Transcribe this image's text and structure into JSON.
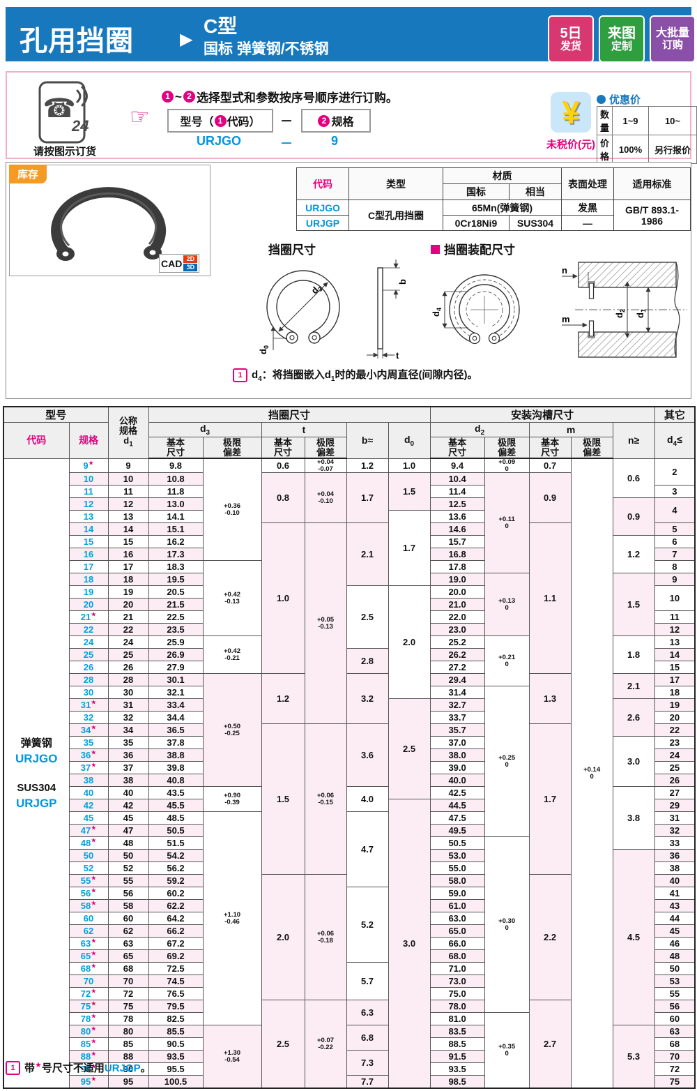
{
  "header": {
    "title": "孔用挡圈",
    "arrow": "▶",
    "type": "C型",
    "subtitle": "国标  弹簧钢/不锈钢",
    "badges": [
      {
        "line1": "5日",
        "line2": "发货",
        "color": "#d6386f"
      },
      {
        "line1": "来图",
        "line2": "定制",
        "color": "#2e9e3e"
      },
      {
        "line1": "大批量",
        "line2": "订购",
        "color": "#8a4fa8"
      }
    ]
  },
  "order": {
    "phone_number": "24",
    "phone_caption": "请按图示订货",
    "hand": "☞",
    "step1": "1",
    "step2": "2",
    "tilde": "~",
    "instruction": "选择型式和参数按序号顺序进行订购。",
    "box1_pre": "型号（",
    "box1_num": "1",
    "box1_post": "代码）",
    "dash": "－",
    "box2_num": "2",
    "box2_label": "规格",
    "example_code": "URJGO",
    "example_dash": "－",
    "example_spec": "9"
  },
  "price": {
    "yen": "¥",
    "caption": "未税价(元)",
    "legend": "优惠价",
    "qty_label": "数量",
    "qty1": "1~9",
    "qty2": "10~",
    "price_label": "价格",
    "price1": "100%",
    "price2": "另行报价"
  },
  "stock": {
    "label": "库存"
  },
  "cad": {
    "label": "CAD",
    "b2d": "2D",
    "b3d": "3D"
  },
  "info_table": {
    "h_code": "代码",
    "h_type": "类型",
    "h_material": "材质",
    "h_gb": "国标",
    "h_equiv": "相当",
    "h_surface": "表面处理",
    "h_standard": "适用标准",
    "row1": {
      "code": "URJGO",
      "type": "C型孔用挡圈",
      "material": "65Mn(弹簧钢)",
      "surface": "发黑",
      "standard": "GB/T 893.1-1986"
    },
    "row2": {
      "code": "URJGP",
      "mat_gb": "0Cr18Ni9",
      "mat_eq": "SUS304",
      "surface": "—"
    }
  },
  "diagrams": {
    "left_title": "挡圈尺寸",
    "right_title": "挡圈装配尺寸",
    "labels": {
      "d3_b": "d",
      "d3_s": "3",
      "b": "b",
      "d0_b": "d",
      "d0_s": "0",
      "t": "t",
      "d4_b": "d",
      "d4_s": "4",
      "n": "n",
      "m": "m",
      "d2_b": "d",
      "d2_s": "2",
      "d1_b": "d",
      "d1_s": "1"
    },
    "note_icon": "1",
    "note_parts": [
      "d",
      "4",
      "：将挡圈嵌入d",
      "1",
      "时的最小内周直径(间隙内径)。"
    ]
  },
  "main_table": {
    "headers": {
      "model": "型号",
      "ring": "挡圈尺寸",
      "groove": "安装沟槽尺寸",
      "other": "其它",
      "code": "代码",
      "spec": "规格",
      "nominal": "公称\n规格",
      "dim_d": "d",
      "sub1": "1",
      "sub3": "3",
      "sub0": "0",
      "sub2": "2",
      "sub4": "4",
      "t": "t",
      "b": "b≈",
      "m": "m",
      "n": "n≥",
      "le": "≤",
      "basic": "基本\n尺寸",
      "dev": "极限\n偏差"
    },
    "material": {
      "m1": "弹簧钢",
      "c1": "URJGO",
      "m2": "SUS304",
      "c2": "URJGP"
    },
    "rows": [
      [
        "9",
        1,
        "9",
        "9.8",
        "9.4"
      ],
      [
        "10",
        0,
        "10",
        "10.8",
        "10.4"
      ],
      [
        "11",
        0,
        "11",
        "11.8",
        "11.4"
      ],
      [
        "12",
        0,
        "12",
        "13.0",
        "12.5"
      ],
      [
        "13",
        0,
        "13",
        "14.1",
        "13.6"
      ],
      [
        "14",
        0,
        "14",
        "15.1",
        "14.6"
      ],
      [
        "15",
        0,
        "15",
        "16.2",
        "15.7"
      ],
      [
        "16",
        0,
        "16",
        "17.3",
        "16.8"
      ],
      [
        "17",
        0,
        "17",
        "18.3",
        "17.8"
      ],
      [
        "18",
        0,
        "18",
        "19.5",
        "19.0"
      ],
      [
        "19",
        0,
        "19",
        "20.5",
        "20.0"
      ],
      [
        "20",
        0,
        "20",
        "21.5",
        "21.0"
      ],
      [
        "21",
        1,
        "21",
        "22.5",
        "22.0"
      ],
      [
        "22",
        0,
        "22",
        "23.5",
        "23.0"
      ],
      [
        "24",
        0,
        "24",
        "25.9",
        "25.2"
      ],
      [
        "25",
        0,
        "25",
        "26.9",
        "26.2"
      ],
      [
        "26",
        0,
        "26",
        "27.9",
        "27.2"
      ],
      [
        "28",
        0,
        "28",
        "30.1",
        "29.4"
      ],
      [
        "30",
        0,
        "30",
        "32.1",
        "31.4"
      ],
      [
        "31",
        1,
        "31",
        "33.4",
        "32.7"
      ],
      [
        "32",
        0,
        "32",
        "34.4",
        "33.7"
      ],
      [
        "34",
        1,
        "34",
        "36.5",
        "35.7"
      ],
      [
        "35",
        0,
        "35",
        "37.8",
        "37.0"
      ],
      [
        "36",
        1,
        "36",
        "38.8",
        "38.0"
      ],
      [
        "37",
        1,
        "37",
        "39.8",
        "39.0"
      ],
      [
        "38",
        0,
        "38",
        "40.8",
        "40.0"
      ],
      [
        "40",
        0,
        "40",
        "43.5",
        "42.5"
      ],
      [
        "42",
        0,
        "42",
        "45.5",
        "44.5"
      ],
      [
        "45",
        0,
        "45",
        "48.5",
        "47.5"
      ],
      [
        "47",
        1,
        "47",
        "50.5",
        "49.5"
      ],
      [
        "48",
        1,
        "48",
        "51.5",
        "50.5"
      ],
      [
        "50",
        0,
        "50",
        "54.2",
        "53.0"
      ],
      [
        "52",
        0,
        "52",
        "56.2",
        "55.0"
      ],
      [
        "55",
        1,
        "55",
        "59.2",
        "58.0"
      ],
      [
        "56",
        1,
        "56",
        "60.2",
        "59.0"
      ],
      [
        "58",
        1,
        "58",
        "62.2",
        "61.0"
      ],
      [
        "60",
        0,
        "60",
        "64.2",
        "63.0"
      ],
      [
        "62",
        0,
        "62",
        "66.2",
        "65.0"
      ],
      [
        "63",
        1,
        "63",
        "67.2",
        "66.0"
      ],
      [
        "65",
        1,
        "65",
        "69.2",
        "68.0"
      ],
      [
        "68",
        1,
        "68",
        "72.5",
        "71.0"
      ],
      [
        "70",
        0,
        "70",
        "74.5",
        "73.0"
      ],
      [
        "72",
        1,
        "72",
        "76.5",
        "75.0"
      ],
      [
        "75",
        1,
        "75",
        "79.5",
        "78.0"
      ],
      [
        "78",
        1,
        "78",
        "82.5",
        "81.0"
      ],
      [
        "80",
        1,
        "80",
        "85.5",
        "83.5"
      ],
      [
        "85",
        1,
        "85",
        "90.5",
        "88.5"
      ],
      [
        "88",
        1,
        "88",
        "93.5",
        "91.5"
      ],
      [
        "90",
        1,
        "90",
        "95.5",
        "93.5"
      ],
      [
        "95",
        1,
        "95",
        "100.5",
        "98.5"
      ]
    ],
    "groups": {
      "d3dev": [
        [
          0,
          8,
          "+0.36|-0.10"
        ],
        [
          8,
          6,
          "+0.42|-0.13"
        ],
        [
          14,
          3,
          "+0.42|-0.21"
        ],
        [
          17,
          9,
          "+0.50|-0.25"
        ],
        [
          26,
          2,
          "+0.90|-0.39"
        ],
        [
          28,
          17,
          "+1.10|-0.46"
        ],
        [
          45,
          5,
          "+1.30|-0.54"
        ]
      ],
      "t": [
        [
          0,
          1,
          "0.6"
        ],
        [
          1,
          4,
          "0.8"
        ],
        [
          5,
          12,
          "1.0"
        ],
        [
          17,
          4,
          "1.2"
        ],
        [
          21,
          12,
          "1.5"
        ],
        [
          33,
          10,
          "2.0"
        ],
        [
          43,
          7,
          "2.5"
        ]
      ],
      "tdev": [
        [
          0,
          1,
          "+0.04|-0.07"
        ],
        [
          1,
          4,
          "+0.04|-0.10"
        ],
        [
          5,
          16,
          "+0.05|-0.13"
        ],
        [
          21,
          12,
          "+0.06|-0.15"
        ],
        [
          33,
          10,
          "+0.06|-0.18"
        ],
        [
          43,
          7,
          "+0.07|-0.22"
        ]
      ],
      "b": [
        [
          0,
          1,
          "1.2"
        ],
        [
          1,
          4,
          "1.7"
        ],
        [
          5,
          5,
          "2.1"
        ],
        [
          10,
          5,
          "2.5"
        ],
        [
          15,
          2,
          "2.8"
        ],
        [
          17,
          4,
          "3.2"
        ],
        [
          21,
          5,
          "3.6"
        ],
        [
          26,
          2,
          "4.0"
        ],
        [
          28,
          6,
          "4.7"
        ],
        [
          34,
          6,
          "5.2"
        ],
        [
          40,
          3,
          "5.7"
        ],
        [
          43,
          2,
          "6.3"
        ],
        [
          45,
          2,
          "6.8"
        ],
        [
          47,
          2,
          "7.3"
        ],
        [
          49,
          1,
          "7.7"
        ]
      ],
      "d0": [
        [
          0,
          1,
          "1.0"
        ],
        [
          1,
          3,
          "1.5"
        ],
        [
          4,
          6,
          "1.7"
        ],
        [
          10,
          9,
          "2.0"
        ],
        [
          19,
          8,
          "2.5"
        ],
        [
          27,
          23,
          "3.0"
        ]
      ],
      "d2dev": [
        [
          0,
          1,
          "+0.09|0"
        ],
        [
          1,
          8,
          "+0.11|0"
        ],
        [
          9,
          5,
          "+0.13|0"
        ],
        [
          14,
          4,
          "+0.21|0"
        ],
        [
          18,
          12,
          "+0.25|0"
        ],
        [
          30,
          14,
          "+0.30|0"
        ],
        [
          44,
          6,
          "+0.35|0"
        ]
      ],
      "m": [
        [
          0,
          1,
          "0.7"
        ],
        [
          1,
          4,
          "0.9"
        ],
        [
          5,
          12,
          "1.1"
        ],
        [
          17,
          4,
          "1.3"
        ],
        [
          21,
          12,
          "1.7"
        ],
        [
          33,
          10,
          "2.2"
        ],
        [
          43,
          7,
          "2.7"
        ]
      ],
      "mdev": [
        [
          0,
          50,
          "+0.14|0"
        ]
      ],
      "n": [
        [
          0,
          3,
          "0.6"
        ],
        [
          3,
          3,
          "0.9"
        ],
        [
          6,
          3,
          "1.2"
        ],
        [
          9,
          5,
          "1.5"
        ],
        [
          14,
          3,
          "1.8"
        ],
        [
          17,
          2,
          "2.1"
        ],
        [
          19,
          3,
          "2.6"
        ],
        [
          22,
          4,
          "3.0"
        ],
        [
          26,
          5,
          "3.8"
        ],
        [
          31,
          14,
          "4.5"
        ],
        [
          45,
          5,
          "5.3"
        ]
      ],
      "d4": [
        [
          0,
          2,
          "2"
        ],
        [
          2,
          1,
          "3"
        ],
        [
          3,
          2,
          "4"
        ],
        [
          5,
          1,
          "5"
        ],
        [
          6,
          1,
          "6"
        ],
        [
          7,
          1,
          "7"
        ],
        [
          8,
          1,
          "8"
        ],
        [
          9,
          1,
          "9"
        ],
        [
          10,
          2,
          "10"
        ],
        [
          12,
          1,
          "11"
        ],
        [
          13,
          1,
          "12"
        ],
        [
          14,
          1,
          "13"
        ],
        [
          15,
          1,
          "14"
        ],
        [
          16,
          1,
          "15"
        ],
        [
          17,
          1,
          "17"
        ],
        [
          18,
          1,
          "18"
        ],
        [
          19,
          1,
          "19"
        ],
        [
          20,
          1,
          "20"
        ],
        [
          21,
          1,
          "22"
        ],
        [
          22,
          1,
          "23"
        ],
        [
          23,
          1,
          "24"
        ],
        [
          24,
          1,
          "25"
        ],
        [
          25,
          1,
          "26"
        ],
        [
          26,
          1,
          "27"
        ],
        [
          27,
          1,
          "29"
        ],
        [
          28,
          1,
          "31"
        ],
        [
          29,
          1,
          "32"
        ],
        [
          30,
          1,
          "33"
        ],
        [
          31,
          1,
          "36"
        ],
        [
          32,
          1,
          "38"
        ],
        [
          33,
          1,
          "40"
        ],
        [
          34,
          1,
          "41"
        ],
        [
          35,
          1,
          "43"
        ],
        [
          36,
          1,
          "44"
        ],
        [
          37,
          1,
          "45"
        ],
        [
          38,
          1,
          "46"
        ],
        [
          39,
          1,
          "48"
        ],
        [
          40,
          1,
          "50"
        ],
        [
          41,
          1,
          "53"
        ],
        [
          42,
          1,
          "55"
        ],
        [
          43,
          1,
          "56"
        ],
        [
          44,
          1,
          "60"
        ],
        [
          45,
          1,
          "63"
        ],
        [
          46,
          1,
          "68"
        ],
        [
          47,
          1,
          "70"
        ],
        [
          48,
          1,
          "72"
        ],
        [
          49,
          1,
          "75"
        ]
      ]
    }
  },
  "footnote": {
    "icon": "1",
    "pre": "带",
    "star": "★",
    "mid": "号尺寸不适用",
    "code": "URJGP",
    "end": "。"
  },
  "colors": {
    "banner_blue": "#1878be",
    "magenta": "#e4007f",
    "link_blue": "#0096df",
    "stripe_pink": "#fbedf3",
    "header_gray": "#efefef",
    "stock_orange": "#f59a23",
    "badge_red": "#d6386f",
    "badge_green": "#2e9e3e",
    "badge_purple": "#8a4fa8",
    "cad_red": "#e8380d",
    "cad_blue": "#0068b7"
  }
}
